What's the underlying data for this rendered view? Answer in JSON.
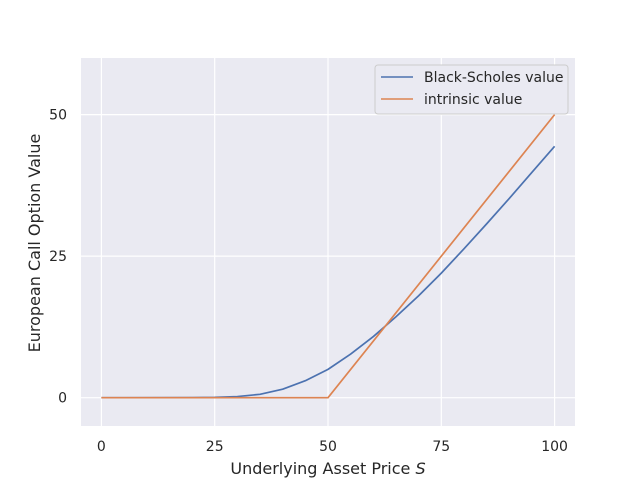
{
  "chart_data": {
    "type": "line",
    "xlabel": "Underlying Asset Price",
    "xlabel_symbol": "S",
    "ylabel": "European Call Option Value",
    "xlim": [
      -4.5,
      104.5
    ],
    "ylim": [
      -5,
      60
    ],
    "xticks": [
      0,
      25,
      50,
      75,
      100
    ],
    "yticks": [
      0,
      25,
      50
    ],
    "grid": true,
    "legend_position": "top-right",
    "series": [
      {
        "name": "Black-Scholes value",
        "color": "#4c72b0",
        "x": [
          0,
          20,
          25,
          30,
          35,
          40,
          45,
          50,
          55,
          60,
          65,
          70,
          75,
          80,
          85,
          90,
          95,
          100
        ],
        "y": [
          0,
          0.01,
          0.05,
          0.2,
          0.6,
          1.5,
          3.0,
          5.0,
          7.7,
          10.8,
          14.3,
          18.0,
          22.0,
          26.3,
          30.7,
          35.2,
          39.8,
          44.4
        ]
      },
      {
        "name": "intrinsic value",
        "color": "#dd8452",
        "x": [
          0,
          50,
          100
        ],
        "y": [
          0,
          0,
          50
        ]
      }
    ]
  }
}
